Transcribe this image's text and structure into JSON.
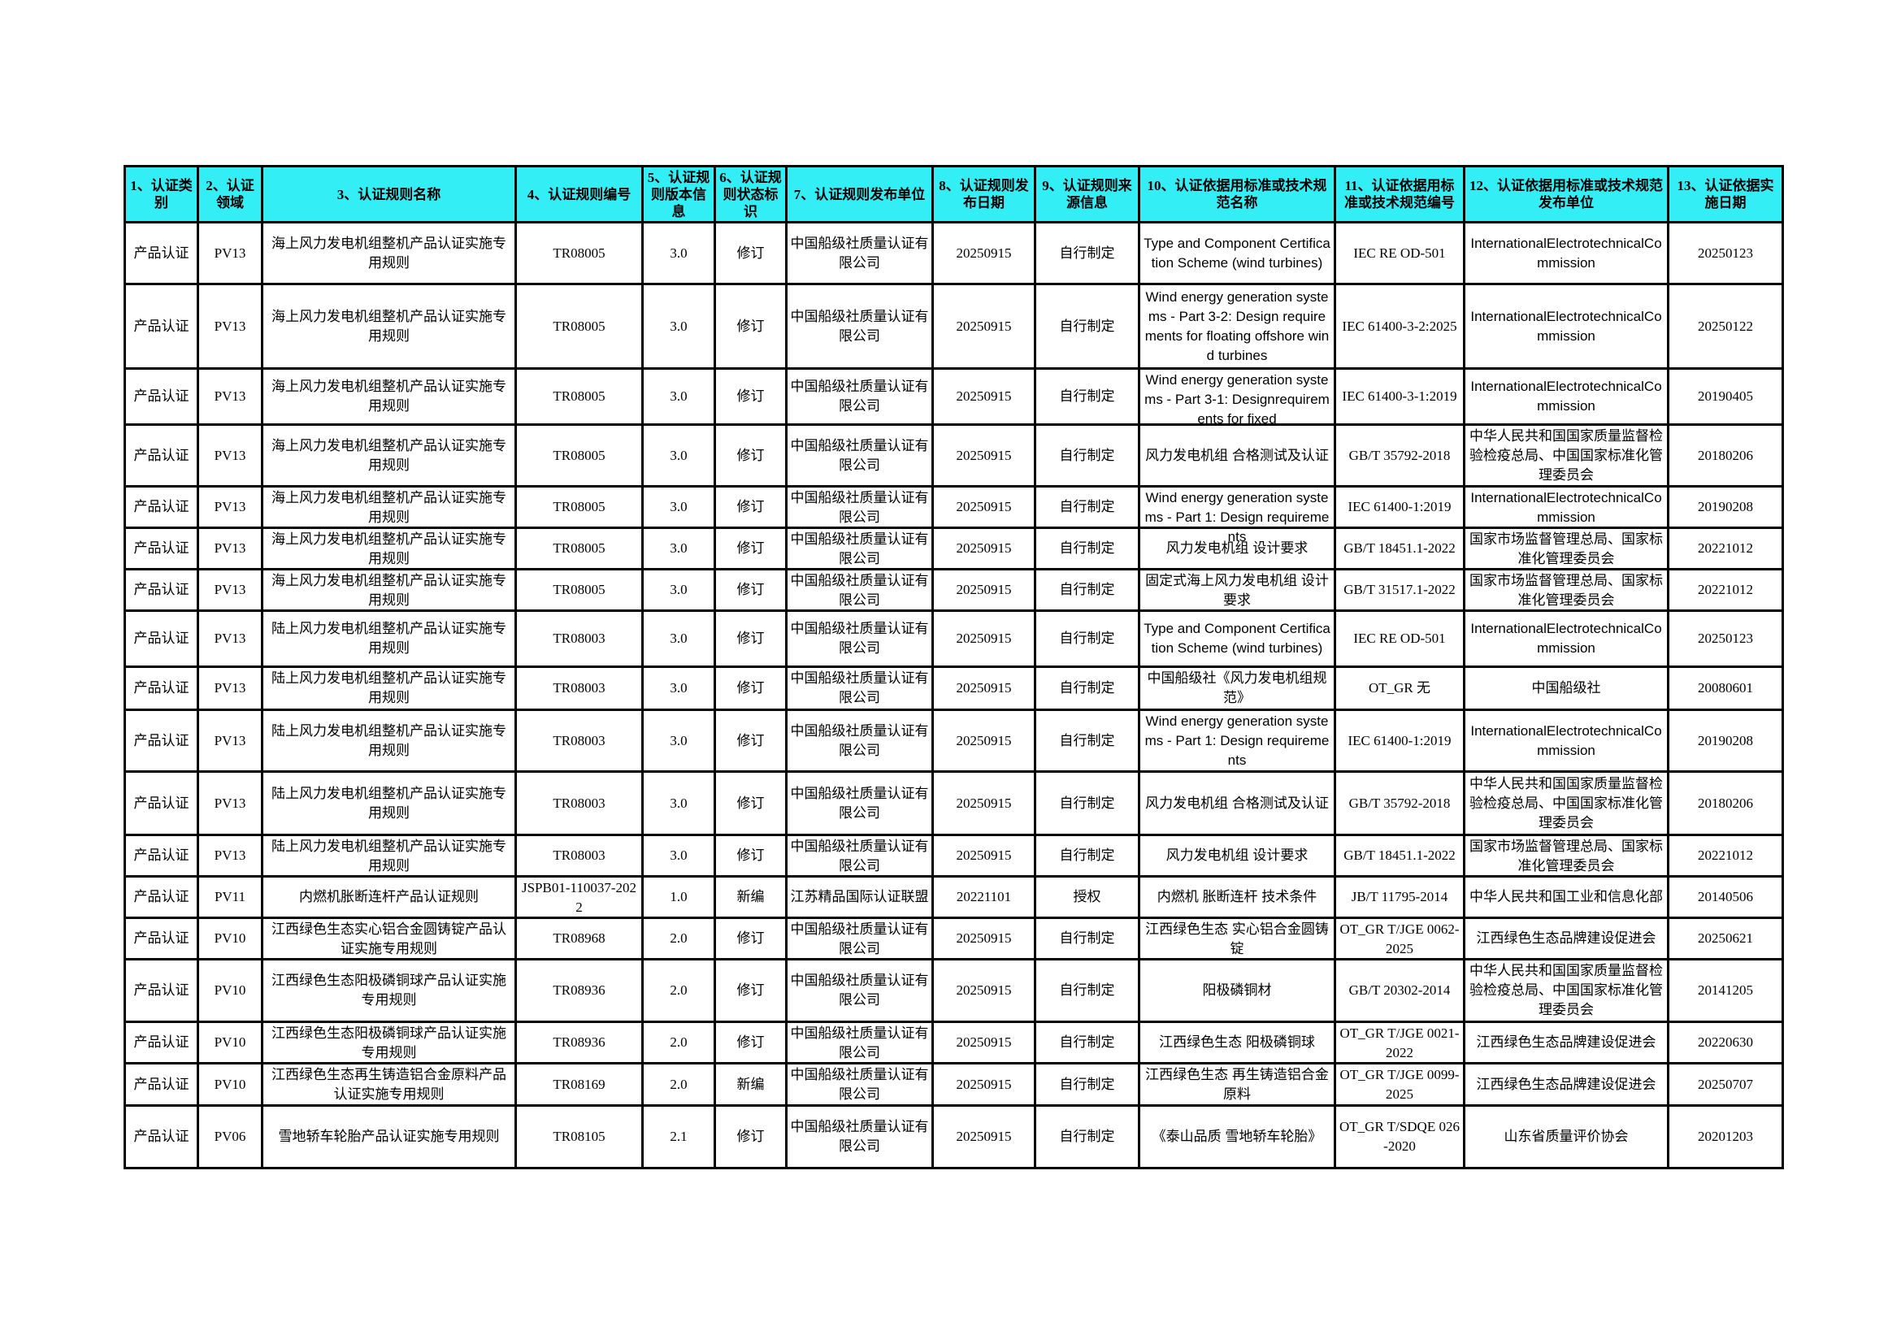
{
  "colors": {
    "header_bg": "#33eef5",
    "border": "#000000"
  },
  "columns": [
    "1、认证类别",
    "2、认证领域",
    "3、认证规则名称",
    "4、认证规则编号",
    "5、认证规则版本信息",
    "6、认证规则状态标识",
    "7、认证规则发布单位",
    "8、认证规则发布日期",
    "9、认证规则来源信息",
    "10、认证依据用标准或技术规范名称",
    "11、认证依据用标准或技术规范编号",
    "12、认证依据用标准或技术规范发布单位",
    "13、认证依据实施日期"
  ],
  "rows": [
    [
      "产品认证",
      "PV13",
      "海上风力发电机组整机产品认证实施专用规则",
      "TR08005",
      "3.0",
      "修订",
      "中国船级社质量认证有限公司",
      "20250915",
      "自行制定",
      "Type and Component Certification Scheme (wind turbines)",
      "IEC RE OD-501",
      "InternationalElectrotechnicalCommission",
      "20250123"
    ],
    [
      "产品认证",
      "PV13",
      "海上风力发电机组整机产品认证实施专用规则",
      "TR08005",
      "3.0",
      "修订",
      "中国船级社质量认证有限公司",
      "20250915",
      "自行制定",
      "Wind energy generation systems - Part 3-2: Design requirements for floating offshore wind turbines",
      "IEC 61400-3-2:2025",
      "InternationalElectrotechnicalCommission",
      "20250122"
    ],
    [
      "产品认证",
      "PV13",
      "海上风力发电机组整机产品认证实施专用规则",
      "TR08005",
      "3.0",
      "修订",
      "中国船级社质量认证有限公司",
      "20250915",
      "自行制定",
      "Wind energy generation systems - Part 3-1: Designrequirements for fixed",
      "IEC 61400-3-1:2019",
      "InternationalElectrotechnicalCommission",
      "20190405"
    ],
    [
      "产品认证",
      "PV13",
      "海上风力发电机组整机产品认证实施专用规则",
      "TR08005",
      "3.0",
      "修订",
      "中国船级社质量认证有限公司",
      "20250915",
      "自行制定",
      "风力发电机组 合格测试及认证",
      "GB/T 35792-2018",
      "中华人民共和国国家质量监督检验检疫总局、中国国家标准化管理委员会",
      "20180206"
    ],
    [
      "产品认证",
      "PV13",
      "海上风力发电机组整机产品认证实施专用规则",
      "TR08005",
      "3.0",
      "修订",
      "中国船级社质量认证有限公司",
      "20250915",
      "自行制定",
      "Wind energy generation systems - Part 1: Design requirements",
      "IEC 61400-1:2019",
      "InternationalElectrotechnicalCommission",
      "20190208"
    ],
    [
      "产品认证",
      "PV13",
      "海上风力发电机组整机产品认证实施专用规则",
      "TR08005",
      "3.0",
      "修订",
      "中国船级社质量认证有限公司",
      "20250915",
      "自行制定",
      "风力发电机组 设计要求",
      "GB/T 18451.1-2022",
      "国家市场监督管理总局、国家标准化管理委员会",
      "20221012"
    ],
    [
      "产品认证",
      "PV13",
      "海上风力发电机组整机产品认证实施专用规则",
      "TR08005",
      "3.0",
      "修订",
      "中国船级社质量认证有限公司",
      "20250915",
      "自行制定",
      "固定式海上风力发电机组 设计要求",
      "GB/T 31517.1-2022",
      "国家市场监督管理总局、国家标准化管理委员会",
      "20221012"
    ],
    [
      "产品认证",
      "PV13",
      "陆上风力发电机组整机产品认证实施专用规则",
      "TR08003",
      "3.0",
      "修订",
      "中国船级社质量认证有限公司",
      "20250915",
      "自行制定",
      "Type and Component Certification Scheme (wind turbines)",
      "IEC RE OD-501",
      "InternationalElectrotechnicalCommission",
      "20250123"
    ],
    [
      "产品认证",
      "PV13",
      "陆上风力发电机组整机产品认证实施专用规则",
      "TR08003",
      "3.0",
      "修订",
      "中国船级社质量认证有限公司",
      "20250915",
      "自行制定",
      "中国船级社《风力发电机组规范》",
      "OT_GR 无",
      "中国船级社",
      "20080601"
    ],
    [
      "产品认证",
      "PV13",
      "陆上风力发电机组整机产品认证实施专用规则",
      "TR08003",
      "3.0",
      "修订",
      "中国船级社质量认证有限公司",
      "20250915",
      "自行制定",
      "Wind energy generation systems - Part 1: Design requirements",
      "IEC 61400-1:2019",
      "InternationalElectrotechnicalCommission",
      "20190208"
    ],
    [
      "产品认证",
      "PV13",
      "陆上风力发电机组整机产品认证实施专用规则",
      "TR08003",
      "3.0",
      "修订",
      "中国船级社质量认证有限公司",
      "20250915",
      "自行制定",
      "风力发电机组 合格测试及认证",
      "GB/T 35792-2018",
      "中华人民共和国国家质量监督检验检疫总局、中国国家标准化管理委员会",
      "20180206"
    ],
    [
      "产品认证",
      "PV13",
      "陆上风力发电机组整机产品认证实施专用规则",
      "TR08003",
      "3.0",
      "修订",
      "中国船级社质量认证有限公司",
      "20250915",
      "自行制定",
      "风力发电机组 设计要求",
      "GB/T 18451.1-2022",
      "国家市场监督管理总局、国家标准化管理委员会",
      "20221012"
    ],
    [
      "产品认证",
      "PV11",
      "内燃机胀断连杆产品认证规则",
      "JSPB01-110037-2022",
      "1.0",
      "新编",
      "江苏精品国际认证联盟",
      "20221101",
      "授权",
      "内燃机 胀断连杆 技术条件",
      "JB/T 11795-2014",
      "中华人民共和国工业和信息化部",
      "20140506"
    ],
    [
      "产品认证",
      "PV10",
      "江西绿色生态实心铝合金圆铸锭产品认证实施专用规则",
      "TR08968",
      "2.0",
      "修订",
      "中国船级社质量认证有限公司",
      "20250915",
      "自行制定",
      "江西绿色生态 实心铝合金圆铸锭",
      "OT_GR T/JGE 0062-2025",
      "江西绿色生态品牌建设促进会",
      "20250621"
    ],
    [
      "产品认证",
      "PV10",
      "江西绿色生态阳极磷铜球产品认证实施专用规则",
      "TR08936",
      "2.0",
      "修订",
      "中国船级社质量认证有限公司",
      "20250915",
      "自行制定",
      "阳极磷铜材",
      "GB/T 20302-2014",
      "中华人民共和国国家质量监督检验检疫总局、中国国家标准化管理委员会",
      "20141205"
    ],
    [
      "产品认证",
      "PV10",
      "江西绿色生态阳极磷铜球产品认证实施专用规则",
      "TR08936",
      "2.0",
      "修订",
      "中国船级社质量认证有限公司",
      "20250915",
      "自行制定",
      "江西绿色生态 阳极磷铜球",
      "OT_GR T/JGE 0021-2022",
      "江西绿色生态品牌建设促进会",
      "20220630"
    ],
    [
      "产品认证",
      "PV10",
      "江西绿色生态再生铸造铝合金原料产品认证实施专用规则",
      "TR08169",
      "2.0",
      "新编",
      "中国船级社质量认证有限公司",
      "20250915",
      "自行制定",
      "江西绿色生态 再生铸造铝合金原料",
      "OT_GR T/JGE 0099-2025",
      "江西绿色生态品牌建设促进会",
      "20250707"
    ],
    [
      "产品认证",
      "PV06",
      "雪地轿车轮胎产品认证实施专用规则",
      "TR08105",
      "2.1",
      "修订",
      "中国船级社质量认证有限公司",
      "20250915",
      "自行制定",
      "《泰山品质 雪地轿车轮胎》",
      "OT_GR T/SDQE 026-2020",
      "山东省质量评价协会",
      "20201203"
    ]
  ]
}
